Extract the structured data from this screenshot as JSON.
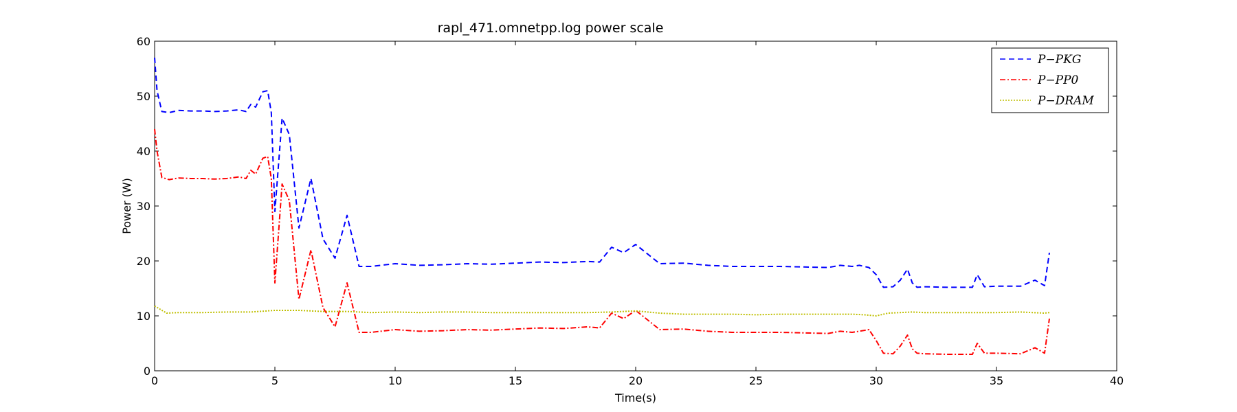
{
  "chart_data": {
    "type": "line",
    "title": "rapl_471.omnetpp.log power scale",
    "xlabel": "Time(s)",
    "ylabel": "Power (W)",
    "xlim": [
      0,
      40
    ],
    "ylim": [
      0,
      60
    ],
    "xticks": [
      0,
      5,
      10,
      15,
      20,
      25,
      30,
      35,
      40
    ],
    "yticks": [
      0,
      10,
      20,
      30,
      40,
      50,
      60
    ],
    "grid": false,
    "legend_position": "top-right",
    "series": [
      {
        "name": "P−PKG",
        "color": "#0000ff",
        "style": "dashed",
        "x": [
          0,
          0.1,
          0.3,
          0.6,
          1,
          1.5,
          2,
          2.5,
          3,
          3.5,
          3.8,
          4,
          4.2,
          4.5,
          4.7,
          4.85,
          5,
          5.3,
          5.6,
          6,
          6.5,
          7,
          7.5,
          8,
          8.5,
          9,
          10,
          11,
          12,
          13,
          14,
          15,
          16,
          17,
          18,
          18.5,
          19,
          19.5,
          20,
          21,
          22,
          23,
          24,
          25,
          26,
          27,
          28,
          28.5,
          29,
          29.3,
          29.7,
          30,
          30.3,
          30.7,
          31,
          31.3,
          31.5,
          31.7,
          32,
          33,
          34,
          34.2,
          34.5,
          35,
          36,
          36.6,
          37,
          37.2
        ],
        "values": [
          57,
          51,
          47.2,
          47,
          47.4,
          47.3,
          47.3,
          47.2,
          47.3,
          47.5,
          47.2,
          48.5,
          48,
          50.8,
          51,
          47,
          29,
          46,
          43,
          26,
          35,
          24,
          20.5,
          28.3,
          19,
          19,
          19.5,
          19.2,
          19.3,
          19.5,
          19.4,
          19.6,
          19.8,
          19.7,
          19.9,
          19.8,
          22.5,
          21.5,
          23,
          19.5,
          19.6,
          19.2,
          19,
          19,
          19,
          18.9,
          18.8,
          19.2,
          19,
          19.2,
          18.8,
          17.5,
          15.2,
          15.3,
          16.5,
          18.5,
          16,
          15.2,
          15.3,
          15.2,
          15.2,
          17.5,
          15.3,
          15.4,
          15.4,
          16.5,
          15.5,
          21.5
        ]
      },
      {
        "name": "P−PP0",
        "color": "#ff0000",
        "style": "dashdot",
        "x": [
          0,
          0.1,
          0.3,
          0.6,
          1,
          1.5,
          2,
          2.5,
          3,
          3.5,
          3.8,
          4,
          4.2,
          4.5,
          4.7,
          4.85,
          5,
          5.3,
          5.6,
          6,
          6.5,
          7,
          7.5,
          8,
          8.5,
          9,
          10,
          11,
          12,
          13,
          14,
          15,
          16,
          17,
          18,
          18.5,
          19,
          19.5,
          20,
          21,
          22,
          23,
          24,
          25,
          26,
          27,
          28,
          28.5,
          29,
          29.3,
          29.7,
          30,
          30.3,
          30.7,
          31,
          31.3,
          31.5,
          31.7,
          32,
          33,
          34,
          34.2,
          34.5,
          35,
          36,
          36.6,
          37,
          37.2
        ],
        "values": [
          44,
          40,
          35.2,
          34.8,
          35.1,
          35,
          35,
          34.9,
          35,
          35.3,
          35,
          36.5,
          35.8,
          38.7,
          39,
          35,
          16,
          34,
          31,
          13,
          22,
          11.5,
          8,
          16,
          7,
          7,
          7.5,
          7.2,
          7.3,
          7.5,
          7.4,
          7.6,
          7.8,
          7.7,
          8,
          7.8,
          10.5,
          9.5,
          11,
          7.5,
          7.6,
          7.2,
          7,
          7,
          7,
          6.9,
          6.8,
          7.2,
          7,
          7.2,
          7.5,
          5.5,
          3.2,
          3.1,
          4.5,
          6.5,
          4,
          3.2,
          3.1,
          3,
          3,
          5,
          3.2,
          3.2,
          3.1,
          4.2,
          3.2,
          9.5
        ]
      },
      {
        "name": "P−DRAM",
        "color": "#bfbf00",
        "style": "dotted",
        "x": [
          0,
          0.5,
          1,
          2,
          3,
          4,
          5,
          6,
          7,
          8,
          9,
          10,
          11,
          12,
          13,
          14,
          15,
          16,
          17,
          18,
          19,
          20,
          21,
          22,
          23,
          24,
          25,
          26,
          27,
          28,
          29,
          29.5,
          30,
          30.5,
          31,
          31.5,
          32,
          33,
          34,
          35,
          36,
          36.5,
          37,
          37.2
        ],
        "values": [
          11.8,
          10.5,
          10.6,
          10.6,
          10.7,
          10.7,
          11,
          11,
          10.8,
          10.8,
          10.6,
          10.7,
          10.6,
          10.7,
          10.7,
          10.6,
          10.6,
          10.6,
          10.6,
          10.6,
          10.7,
          10.9,
          10.5,
          10.3,
          10.3,
          10.3,
          10.2,
          10.3,
          10.3,
          10.3,
          10.3,
          10.2,
          10,
          10.5,
          10.6,
          10.7,
          10.6,
          10.6,
          10.6,
          10.6,
          10.7,
          10.6,
          10.5,
          10.6
        ]
      }
    ]
  }
}
